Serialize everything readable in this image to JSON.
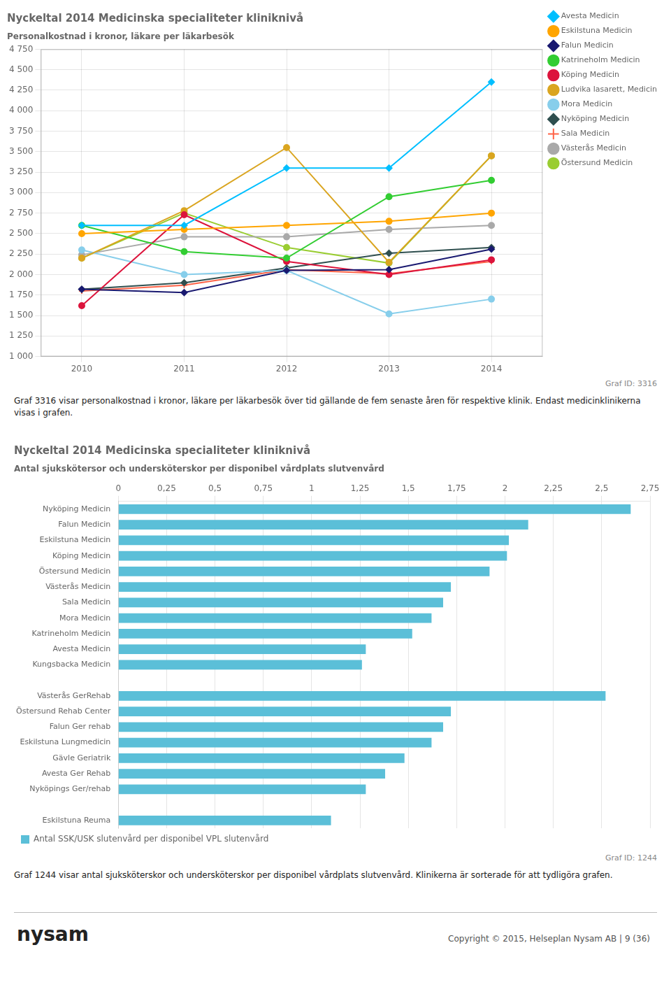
{
  "chart_data": [
    {
      "type": "line",
      "title": "Nyckeltal 2014 Medicinska specialiteter kliniknivå",
      "subtitle": "Personalkostnad i kronor, läkare per läkarbesök",
      "x": [
        2010,
        2011,
        2012,
        2013,
        2014
      ],
      "series": [
        {
          "name": "Avesta Medicin",
          "color": "#00BFFF",
          "marker": "diamond",
          "values": [
            2600,
            2600,
            3300,
            3300,
            4350
          ]
        },
        {
          "name": "Eskilstuna Medicin",
          "color": "#FFA500",
          "marker": "circle",
          "values": [
            2500,
            2550,
            2600,
            2650,
            2750
          ]
        },
        {
          "name": "Falun Medicin",
          "color": "#191970",
          "marker": "diamond",
          "values": [
            1820,
            1780,
            2050,
            2060,
            2310
          ]
        },
        {
          "name": "Katrineholm Medicin",
          "color": "#32CD32",
          "marker": "circle",
          "values": [
            2600,
            2280,
            2200,
            2950,
            3150
          ]
        },
        {
          "name": "Köping Medicin",
          "color": "#DC143C",
          "marker": "circle",
          "values": [
            1620,
            2730,
            2160,
            2000,
            2180
          ]
        },
        {
          "name": "Ludvika lasarett, Medicin",
          "color": "#DAA520",
          "marker": "circle",
          "values": [
            2200,
            2780,
            3550,
            2150,
            3450
          ]
        },
        {
          "name": "Mora Medicin",
          "color": "#87CEEB",
          "marker": "circle",
          "values": [
            2300,
            2000,
            2050,
            1520,
            1700
          ]
        },
        {
          "name": "Nyköping Medicin",
          "color": "#2F4F4F",
          "marker": "diamond",
          "values": [
            1820,
            1900,
            2080,
            2260,
            2330
          ]
        },
        {
          "name": "Sala Medicin",
          "color": "#FF6347",
          "marker": "plus",
          "values": [
            1800,
            1870,
            2060,
            2010,
            2160
          ]
        },
        {
          "name": "Västerås Medicin",
          "color": "#A9A9A9",
          "marker": "circle",
          "values": [
            2240,
            2460,
            2460,
            2550,
            2600
          ]
        },
        {
          "name": "Östersund Medicin",
          "color": "#9ACD32",
          "marker": "circle",
          "values": [
            2200,
            2750,
            2330,
            2140,
            3450
          ]
        }
      ],
      "xlim": [
        2009.6,
        2014.5
      ],
      "xticks": [
        2010,
        2011,
        2012,
        2013,
        2014
      ],
      "ylim": [
        1000,
        4750
      ],
      "yticks": [
        {
          "value": 1000,
          "label": "1 000"
        },
        {
          "value": 1250,
          "label": "1 250"
        },
        {
          "value": 1500,
          "label": "1 500"
        },
        {
          "value": 1750,
          "label": "1 750"
        },
        {
          "value": 2000,
          "label": "2 000"
        },
        {
          "value": 2250,
          "label": "2 250"
        },
        {
          "value": 2500,
          "label": "2 500"
        },
        {
          "value": 2750,
          "label": "2 750"
        },
        {
          "value": 3000,
          "label": "3 000"
        },
        {
          "value": 3250,
          "label": "3 250"
        },
        {
          "value": 3500,
          "label": "3 500"
        },
        {
          "value": 3750,
          "label": "3 750"
        },
        {
          "value": 4000,
          "label": "4 000"
        },
        {
          "value": 4250,
          "label": "4 250"
        },
        {
          "value": 4500,
          "label": "4 500"
        },
        {
          "value": 4750,
          "label": "4 750"
        }
      ],
      "grid": true,
      "legend": "upper right",
      "annotations": [
        "Graf ID: 3316",
        "Graf 3316 visar personalkostnad i kronor, läkare per läkarbesök över tid gällande de fem senaste åren för respektive klinik. Endast medicinklinikerna visas i grafen."
      ]
    },
    {
      "type": "bar",
      "orientation": "horizontal",
      "title": "Nyckeltal 2014 Medicinska specialiteter kliniknivå",
      "subtitle": "Antal sjukskötersor och undersköterskor per disponibel vårdplats slutvenvård",
      "categories": [
        "Nyköping Medicin",
        "Falun Medicin",
        "Eskilstuna Medicin",
        "Köping Medicin",
        "Östersund Medicin",
        "Västerås Medicin",
        "Sala Medicin",
        "Mora Medicin",
        "Katrineholm Medicin",
        "Avesta Medicin",
        "Kungsbacka Medicin",
        null,
        "Västerås GerRehab",
        "Östersund Rehab Center",
        "Falun Ger rehab",
        "Eskilstuna Lungmedicin",
        "Gävle Geriatrik",
        "Avesta Ger Rehab",
        "Nyköpings Ger/rehab",
        null,
        "Eskilstuna Reuma"
      ],
      "series": [
        {
          "name": "Antal SSK/USK slutenvård per disponibel VPL slutenvård",
          "color": "#5BBFD8",
          "values": [
            2.65,
            2.12,
            2.02,
            2.01,
            1.92,
            1.72,
            1.68,
            1.62,
            1.52,
            1.28,
            1.26,
            null,
            2.52,
            1.72,
            1.68,
            1.62,
            1.48,
            1.38,
            1.28,
            null,
            1.1
          ]
        }
      ],
      "xlim": [
        0,
        2.75
      ],
      "xticks": [
        0,
        {
          "value": 0.25,
          "label": "0,25"
        },
        {
          "value": 0.5,
          "label": "0,5"
        },
        {
          "value": 0.75,
          "label": "0,75"
        },
        1,
        {
          "value": 1.25,
          "label": "1,25"
        },
        {
          "value": 1.5,
          "label": "1,5"
        },
        {
          "value": 1.75,
          "label": "1,75"
        },
        2,
        {
          "value": 2.25,
          "label": "2,25"
        },
        {
          "value": 2.5,
          "label": "2,5"
        },
        {
          "value": 2.75,
          "label": "2,75"
        }
      ],
      "grid": "x",
      "legend": "lower left",
      "annotations": [
        "Graf ID: 1244",
        "Graf 1244 visar antal sjuksköterskor och undersköterskor per disponibel vårdplats slutvenvård. Klinikerna är sorterade för att tydligöra grafen.",
        "ny",
        "sam",
        "Copyright © 2015, Helseplan Nysam AB  |  9 (36)"
      ]
    }
  ]
}
